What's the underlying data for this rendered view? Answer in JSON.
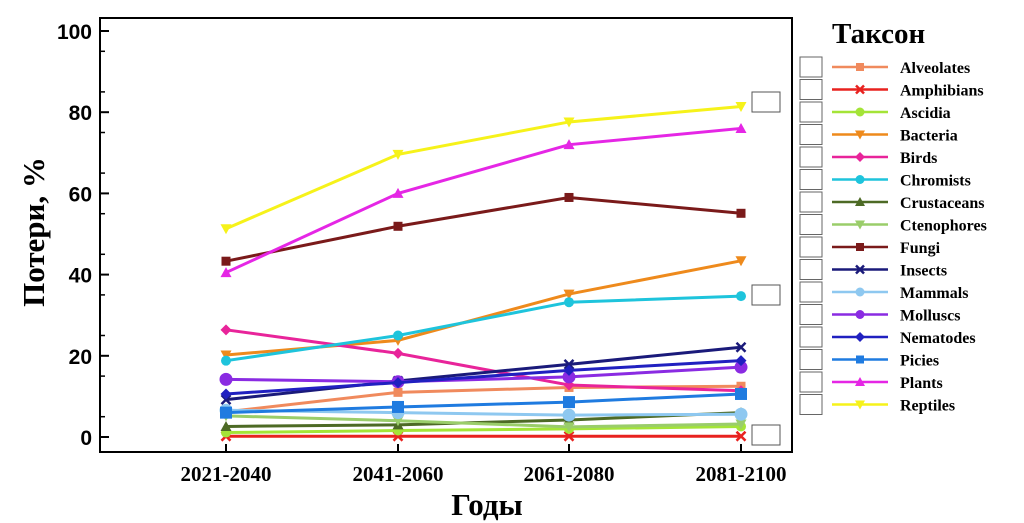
{
  "chart_data": {
    "type": "line",
    "title": "",
    "xlabel": "Годы",
    "ylabel": "Потери, %",
    "categories": [
      "2021-2040",
      "2041-2060",
      "2061-2080",
      "2081-2100"
    ],
    "ylim": [
      0,
      100
    ],
    "yticks": [
      0,
      20,
      40,
      60,
      80,
      100
    ],
    "grid": false,
    "legend_title": "Таксон",
    "legend_position": "right",
    "series": [
      {
        "name": "Alveolates",
        "color": "#f08a5d",
        "marker": "square",
        "values": [
          6.2,
          11.0,
          12.2,
          12.5
        ]
      },
      {
        "name": "Amphibians",
        "color": "#e8221f",
        "marker": "x",
        "values": [
          0.2,
          0.2,
          0.2,
          0.2
        ]
      },
      {
        "name": "Ascidia",
        "color": "#a4e437",
        "marker": "circle",
        "values": [
          1.1,
          1.6,
          2.0,
          2.6
        ]
      },
      {
        "name": "Bacteria",
        "color": "#ee8a1c",
        "marker": "triangle-down",
        "values": [
          20.2,
          23.8,
          35.2,
          43.4
        ]
      },
      {
        "name": "Birds",
        "color": "#e8249a",
        "marker": "diamond",
        "values": [
          26.4,
          20.6,
          12.8,
          11.4
        ]
      },
      {
        "name": "Chromists",
        "color": "#1ec4dc",
        "marker": "circle",
        "values": [
          18.8,
          25.0,
          33.2,
          34.7
        ]
      },
      {
        "name": "Crustaceans",
        "color": "#4d6a25",
        "marker": "triangle",
        "values": [
          2.6,
          3.0,
          4.2,
          6.0
        ]
      },
      {
        "name": "Ctenophores",
        "color": "#9acd6a",
        "marker": "triangle-down",
        "values": [
          5.2,
          4.0,
          2.5,
          3.2
        ]
      },
      {
        "name": "Fungi",
        "color": "#7a1a1a",
        "marker": "square",
        "values": [
          43.3,
          51.9,
          59.0,
          55.1
        ]
      },
      {
        "name": "Insects",
        "color": "#1a1a7a",
        "marker": "x",
        "values": [
          9.2,
          13.8,
          17.9,
          22.1
        ]
      },
      {
        "name": "Mammals",
        "color": "#8ec8f0",
        "marker": "circle",
        "values": [
          6.6,
          6.0,
          5.4,
          5.6
        ]
      },
      {
        "name": "Molluscs",
        "color": "#8a2be2",
        "marker": "circle",
        "values": [
          14.2,
          13.6,
          14.8,
          17.2
        ]
      },
      {
        "name": "Nematodes",
        "color": "#2020c0",
        "marker": "diamond",
        "values": [
          10.6,
          13.4,
          16.4,
          18.8
        ]
      },
      {
        "name": "Picies",
        "color": "#1f7be0",
        "marker": "square",
        "values": [
          6.0,
          7.4,
          8.6,
          10.6
        ]
      },
      {
        "name": "Plants",
        "color": "#e526e5",
        "marker": "triangle",
        "values": [
          40.5,
          60.0,
          72.0,
          76.0
        ]
      },
      {
        "name": "Reptiles",
        "color": "#f6f21a",
        "marker": "triangle-down",
        "values": [
          51.3,
          69.6,
          77.6,
          81.4
        ]
      }
    ]
  }
}
